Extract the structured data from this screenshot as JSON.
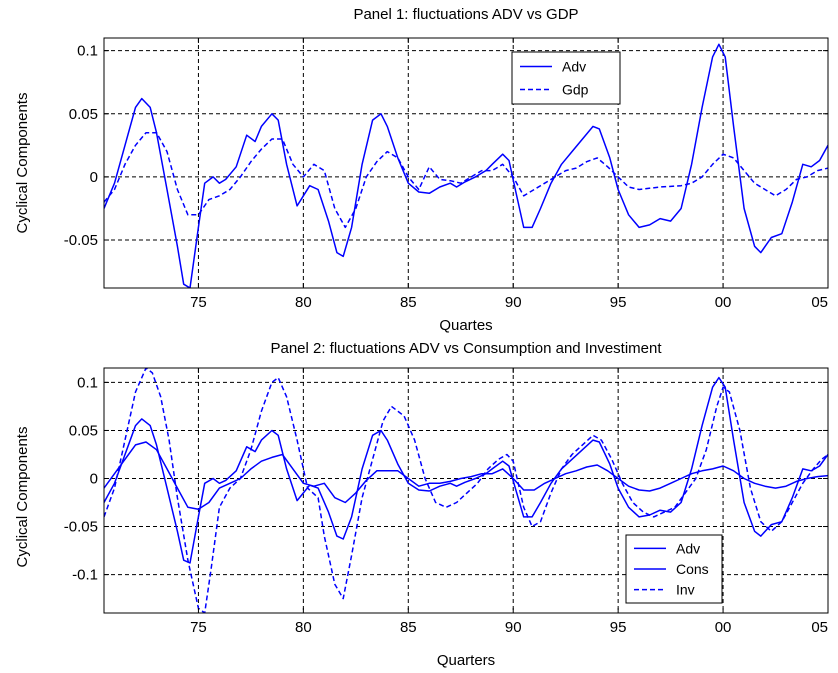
{
  "chart_data": [
    {
      "type": "line",
      "title": "Panel 1: fluctuations ADV vs GDP",
      "xlabel": "Quartes",
      "ylabel": "Cyclical Components",
      "xlim": [
        1970.5,
        2005.0
      ],
      "ylim": [
        -0.088,
        0.11
      ],
      "xticks": [
        1975,
        1980,
        1985,
        1990,
        1995,
        2000,
        2005
      ],
      "xticklabels": [
        "75",
        "80",
        "85",
        "90",
        "95",
        "00",
        "05"
      ],
      "yticks": [
        -0.05,
        0,
        0.05,
        0.1
      ],
      "yticklabels": [
        "-0.05",
        "0",
        "0.05",
        "0.1"
      ],
      "grid": true,
      "legend": "top-right",
      "series": [
        {
          "name": "Adv",
          "style": "solid",
          "color": "#0000ff",
          "x": [
            1970.5,
            1971.0,
            1971.5,
            1972.0,
            1972.3,
            1972.7,
            1973.0,
            1973.5,
            1974.0,
            1974.3,
            1974.6,
            1975.0,
            1975.3,
            1975.7,
            1976.0,
            1976.3,
            1976.8,
            1977.3,
            1977.7,
            1978.0,
            1978.5,
            1978.8,
            1979.2,
            1979.7,
            1980.0,
            1980.3,
            1980.7,
            1981.2,
            1981.6,
            1981.9,
            1982.3,
            1982.8,
            1983.3,
            1983.7,
            1984.0,
            1984.5,
            1985.0,
            1985.5,
            1986.0,
            1986.5,
            1987.0,
            1987.3,
            1987.7,
            1988.2,
            1988.7,
            1989.0,
            1989.5,
            1989.8,
            1990.1,
            1990.5,
            1990.9,
            1991.3,
            1991.8,
            1992.3,
            1992.8,
            1993.3,
            1993.8,
            1994.1,
            1994.6,
            1995.0,
            1995.5,
            1996.0,
            1996.5,
            1997.0,
            1997.5,
            1998.0,
            1998.5,
            1999.0,
            1999.5,
            1999.8,
            2000.1,
            2000.5,
            2001.0,
            2001.5,
            2001.8,
            2002.3,
            2002.8,
            2003.3,
            2003.8,
            2004.2,
            2004.6,
            2005.0
          ],
          "y": [
            -0.025,
            -0.005,
            0.025,
            0.055,
            0.062,
            0.055,
            0.035,
            -0.01,
            -0.055,
            -0.085,
            -0.088,
            -0.04,
            -0.005,
            0.0,
            -0.005,
            -0.002,
            0.008,
            0.033,
            0.028,
            0.04,
            0.05,
            0.045,
            0.01,
            -0.023,
            -0.015,
            -0.007,
            -0.01,
            -0.035,
            -0.06,
            -0.063,
            -0.04,
            0.01,
            0.045,
            0.05,
            0.04,
            0.015,
            -0.005,
            -0.012,
            -0.013,
            -0.008,
            -0.005,
            -0.008,
            -0.004,
            0.0,
            0.005,
            0.01,
            0.018,
            0.013,
            -0.01,
            -0.04,
            -0.04,
            -0.025,
            -0.005,
            0.01,
            0.02,
            0.03,
            0.04,
            0.038,
            0.015,
            -0.01,
            -0.03,
            -0.04,
            -0.038,
            -0.033,
            -0.035,
            -0.025,
            0.01,
            0.055,
            0.095,
            0.105,
            0.095,
            0.04,
            -0.025,
            -0.055,
            -0.06,
            -0.048,
            -0.045,
            -0.02,
            0.01,
            0.008,
            0.013,
            0.025
          ]
        },
        {
          "name": "Gdp",
          "style": "dashed",
          "color": "#0000ff",
          "x": [
            1970.5,
            1971.0,
            1971.5,
            1972.0,
            1972.5,
            1973.0,
            1973.5,
            1974.0,
            1974.5,
            1975.0,
            1975.5,
            1976.0,
            1976.5,
            1977.0,
            1977.5,
            1978.0,
            1978.5,
            1979.0,
            1979.5,
            1980.0,
            1980.5,
            1981.0,
            1981.5,
            1982.0,
            1982.5,
            1983.0,
            1983.5,
            1984.0,
            1984.5,
            1985.0,
            1985.5,
            1986.0,
            1986.5,
            1987.0,
            1987.5,
            1988.0,
            1988.5,
            1989.0,
            1989.5,
            1990.0,
            1990.5,
            1991.0,
            1991.5,
            1992.0,
            1992.5,
            1993.0,
            1993.5,
            1994.0,
            1994.5,
            1995.0,
            1995.5,
            1996.0,
            1997.0,
            1998.0,
            1998.5,
            1999.0,
            1999.5,
            2000.0,
            2000.5,
            2001.0,
            2001.5,
            2002.0,
            2002.5,
            2003.0,
            2003.5,
            2004.0,
            2004.5,
            2005.0
          ],
          "y": [
            -0.02,
            -0.01,
            0.01,
            0.025,
            0.035,
            0.035,
            0.02,
            -0.01,
            -0.03,
            -0.03,
            -0.018,
            -0.015,
            -0.01,
            0.0,
            0.012,
            0.022,
            0.03,
            0.03,
            0.01,
            0.0,
            0.01,
            0.005,
            -0.025,
            -0.04,
            -0.025,
            0.0,
            0.012,
            0.02,
            0.015,
            0.0,
            -0.01,
            0.008,
            -0.002,
            -0.003,
            -0.005,
            0.0,
            0.005,
            0.005,
            0.01,
            0.0,
            -0.015,
            -0.01,
            -0.005,
            0.0,
            0.005,
            0.007,
            0.012,
            0.015,
            0.008,
            0.0,
            -0.008,
            -0.01,
            -0.008,
            -0.007,
            -0.005,
            0.0,
            0.01,
            0.018,
            0.015,
            0.005,
            -0.005,
            -0.01,
            -0.015,
            -0.01,
            -0.002,
            0.0,
            0.005,
            0.007
          ]
        }
      ]
    },
    {
      "type": "line",
      "title": "Panel 2: fluctuations ADV vs Consumption and Investiment",
      "xlabel": "Quarters",
      "ylabel": "Cyclical Components",
      "xlim": [
        1970.5,
        2005.0
      ],
      "ylim": [
        -0.14,
        0.115
      ],
      "xticks": [
        1975,
        1980,
        1985,
        1990,
        1995,
        2000,
        2005
      ],
      "xticklabels": [
        "75",
        "80",
        "85",
        "90",
        "95",
        "00",
        "05"
      ],
      "yticks": [
        -0.1,
        -0.05,
        0,
        0.05,
        0.1
      ],
      "yticklabels": [
        "-0.1",
        "-0.05",
        "0",
        "0.05",
        "0.1"
      ],
      "grid": true,
      "legend": "bottom-right",
      "series": [
        {
          "name": "Adv",
          "style": "solid",
          "color": "#0000ff",
          "x": [
            1970.5,
            1971.0,
            1971.5,
            1972.0,
            1972.3,
            1972.7,
            1973.0,
            1973.5,
            1974.0,
            1974.3,
            1974.6,
            1975.0,
            1975.3,
            1975.7,
            1976.0,
            1976.3,
            1976.8,
            1977.3,
            1977.7,
            1978.0,
            1978.5,
            1978.8,
            1979.2,
            1979.7,
            1980.0,
            1980.3,
            1980.7,
            1981.2,
            1981.6,
            1981.9,
            1982.3,
            1982.8,
            1983.3,
            1983.7,
            1984.0,
            1984.5,
            1985.0,
            1985.5,
            1986.0,
            1986.5,
            1987.0,
            1987.3,
            1987.7,
            1988.2,
            1988.7,
            1989.0,
            1989.5,
            1989.8,
            1990.1,
            1990.5,
            1990.9,
            1991.3,
            1991.8,
            1992.3,
            1992.8,
            1993.3,
            1993.8,
            1994.1,
            1994.6,
            1995.0,
            1995.5,
            1996.0,
            1996.5,
            1997.0,
            1997.5,
            1998.0,
            1998.5,
            1999.0,
            1999.5,
            1999.8,
            2000.1,
            2000.5,
            2001.0,
            2001.5,
            2001.8,
            2002.3,
            2002.8,
            2003.3,
            2003.8,
            2004.2,
            2004.6,
            2005.0
          ],
          "y": [
            -0.025,
            -0.005,
            0.025,
            0.055,
            0.062,
            0.055,
            0.035,
            -0.01,
            -0.055,
            -0.085,
            -0.088,
            -0.04,
            -0.005,
            0.0,
            -0.005,
            -0.002,
            0.008,
            0.033,
            0.028,
            0.04,
            0.05,
            0.045,
            0.01,
            -0.023,
            -0.015,
            -0.007,
            -0.01,
            -0.035,
            -0.06,
            -0.063,
            -0.04,
            0.01,
            0.045,
            0.05,
            0.04,
            0.015,
            -0.005,
            -0.012,
            -0.013,
            -0.008,
            -0.005,
            -0.008,
            -0.004,
            0.0,
            0.005,
            0.01,
            0.018,
            0.013,
            -0.01,
            -0.04,
            -0.04,
            -0.025,
            -0.005,
            0.01,
            0.02,
            0.03,
            0.04,
            0.038,
            0.015,
            -0.01,
            -0.03,
            -0.04,
            -0.038,
            -0.033,
            -0.035,
            -0.025,
            0.01,
            0.055,
            0.095,
            0.105,
            0.095,
            0.04,
            -0.025,
            -0.055,
            -0.06,
            -0.048,
            -0.045,
            -0.02,
            0.01,
            0.008,
            0.013,
            0.025
          ]
        },
        {
          "name": "Cons",
          "style": "solid",
          "color": "#0000ff",
          "x": [
            1970.5,
            1971.0,
            1971.5,
            1972.0,
            1972.5,
            1973.0,
            1973.5,
            1974.0,
            1974.5,
            1975.0,
            1975.5,
            1976.0,
            1976.5,
            1977.0,
            1977.5,
            1978.0,
            1978.5,
            1979.0,
            1979.5,
            1980.0,
            1980.5,
            1981.0,
            1981.5,
            1982.0,
            1982.5,
            1983.0,
            1983.5,
            1984.0,
            1984.5,
            1985.0,
            1985.5,
            1986.0,
            1986.5,
            1987.0,
            1987.5,
            1988.0,
            1988.5,
            1989.0,
            1989.5,
            1990.0,
            1990.5,
            1991.0,
            1991.5,
            1992.0,
            1992.5,
            1993.0,
            1993.5,
            1994.0,
            1994.5,
            1995.0,
            1995.5,
            1996.0,
            1996.5,
            1997.0,
            1997.5,
            1998.0,
            1998.5,
            1999.0,
            1999.5,
            2000.0,
            2000.5,
            2001.0,
            2001.5,
            2002.0,
            2002.5,
            2003.0,
            2003.5,
            2004.0,
            2004.5,
            2005.0
          ],
          "y": [
            -0.01,
            0.005,
            0.02,
            0.035,
            0.038,
            0.03,
            0.01,
            -0.01,
            -0.03,
            -0.032,
            -0.025,
            -0.01,
            -0.005,
            0.0,
            0.01,
            0.018,
            0.022,
            0.025,
            0.01,
            -0.005,
            -0.008,
            -0.005,
            -0.02,
            -0.025,
            -0.015,
            -0.002,
            0.008,
            0.008,
            0.008,
            0.0,
            -0.008,
            -0.005,
            -0.005,
            -0.003,
            0.0,
            0.002,
            0.005,
            0.005,
            0.01,
            0.0,
            -0.012,
            -0.012,
            -0.005,
            0.0,
            0.005,
            0.008,
            0.012,
            0.014,
            0.008,
            0.0,
            -0.008,
            -0.012,
            -0.013,
            -0.01,
            -0.005,
            0.0,
            0.005,
            0.008,
            0.01,
            0.013,
            0.008,
            0.0,
            -0.005,
            -0.008,
            -0.01,
            -0.008,
            -0.003,
            0.0,
            0.002,
            0.003
          ]
        },
        {
          "name": "Inv",
          "style": "dashed",
          "color": "#0000ff",
          "x": [
            1970.5,
            1971.0,
            1971.5,
            1972.0,
            1972.5,
            1972.8,
            1973.2,
            1973.6,
            1974.0,
            1974.5,
            1975.0,
            1975.3,
            1975.6,
            1976.0,
            1976.5,
            1977.0,
            1977.5,
            1978.0,
            1978.5,
            1978.8,
            1979.2,
            1979.7,
            1980.2,
            1980.7,
            1981.0,
            1981.5,
            1981.9,
            1982.3,
            1982.8,
            1983.3,
            1983.8,
            1984.2,
            1984.8,
            1985.3,
            1985.8,
            1986.3,
            1986.8,
            1987.3,
            1987.8,
            1988.3,
            1988.8,
            1989.3,
            1989.7,
            1990.0,
            1990.5,
            1990.9,
            1991.3,
            1991.8,
            1992.3,
            1992.8,
            1993.3,
            1993.8,
            1994.2,
            1994.7,
            1995.2,
            1995.7,
            1996.2,
            1996.7,
            1997.2,
            1997.7,
            1998.2,
            1998.7,
            1999.2,
            1999.7,
            2000.0,
            2000.3,
            2000.8,
            2001.3,
            2001.8,
            2002.3,
            2002.8,
            2003.3,
            2003.8,
            2004.3,
            2004.7,
            2005.0
          ],
          "y": [
            -0.04,
            -0.01,
            0.04,
            0.09,
            0.115,
            0.11,
            0.085,
            0.04,
            -0.02,
            -0.085,
            -0.135,
            -0.14,
            -0.095,
            -0.03,
            -0.01,
            0.0,
            0.03,
            0.07,
            0.1,
            0.105,
            0.085,
            0.04,
            -0.01,
            -0.02,
            -0.06,
            -0.11,
            -0.125,
            -0.08,
            -0.02,
            0.02,
            0.06,
            0.075,
            0.065,
            0.04,
            0.0,
            -0.025,
            -0.03,
            -0.025,
            -0.015,
            -0.005,
            0.01,
            0.02,
            0.025,
            0.018,
            -0.03,
            -0.05,
            -0.045,
            -0.015,
            0.01,
            0.025,
            0.035,
            0.045,
            0.04,
            0.02,
            -0.005,
            -0.025,
            -0.035,
            -0.04,
            -0.035,
            -0.03,
            -0.015,
            0.0,
            0.03,
            0.075,
            0.095,
            0.09,
            0.05,
            -0.01,
            -0.045,
            -0.055,
            -0.045,
            -0.025,
            -0.005,
            0.01,
            0.02,
            0.025
          ]
        }
      ]
    }
  ]
}
